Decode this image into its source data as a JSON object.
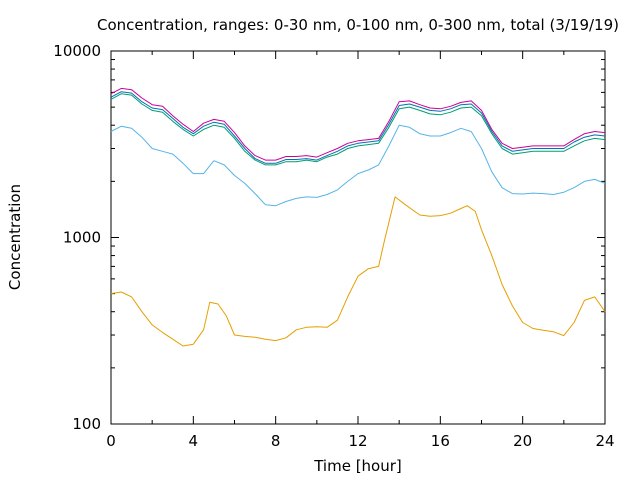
{
  "chart_data": {
    "type": "line",
    "title": "Concentration, ranges: 0-30 nm, 0-100 nm, 0-300 nm, total (3/19/19)",
    "xlabel": "Time [hour]",
    "ylabel": "Concentration",
    "xlim": [
      0,
      24
    ],
    "ylim": [
      100,
      10000
    ],
    "yscale": "log",
    "grid": false,
    "legend": "none",
    "x_ticks": [
      0,
      4,
      8,
      12,
      16,
      20,
      24
    ],
    "x_tick_labels": [
      "0",
      "4",
      "8",
      "12",
      "16",
      "20",
      "24"
    ],
    "y_ticks": [
      100,
      1000,
      10000
    ],
    "y_tick_labels": [
      "100",
      "1000",
      "10000"
    ],
    "series": [
      {
        "color": "#e69f00",
        "x": [
          0,
          0.5,
          1,
          1.5,
          2,
          2.5,
          3,
          3.5,
          4,
          4.5,
          4.8,
          5.2,
          5.6,
          6,
          6.5,
          7,
          7.5,
          8,
          8.5,
          9,
          9.5,
          10,
          10.5,
          11,
          11.5,
          12,
          12.5,
          13,
          13.3,
          13.8,
          14.3,
          15,
          15.5,
          16,
          16.5,
          17,
          17.3,
          17.7,
          18,
          18.5,
          19,
          19.5,
          20,
          20.5,
          21,
          21.5,
          22,
          22.5,
          23,
          23.5,
          24
        ],
        "y": [
          500,
          510,
          480,
          400,
          340,
          310,
          285,
          262,
          268,
          320,
          450,
          440,
          380,
          300,
          295,
          292,
          285,
          280,
          290,
          320,
          330,
          332,
          330,
          360,
          480,
          620,
          680,
          700,
          980,
          1650,
          1500,
          1320,
          1300,
          1310,
          1350,
          1430,
          1480,
          1380,
          1100,
          800,
          560,
          430,
          350,
          325,
          318,
          312,
          298,
          350,
          460,
          480,
          400
        ]
      },
      {
        "color": "#56b4e9",
        "x": [
          0,
          0.5,
          1,
          1.5,
          2,
          2.5,
          3,
          3.5,
          4,
          4.5,
          5,
          5.5,
          6,
          6.5,
          7,
          7.5,
          8,
          8.5,
          9,
          9.5,
          10,
          10.5,
          11,
          11.5,
          12,
          12.5,
          13,
          13.5,
          14,
          14.5,
          15,
          15.5,
          16,
          16.5,
          17,
          17.5,
          18,
          18.5,
          19,
          19.5,
          20,
          20.5,
          21,
          21.5,
          22,
          22.5,
          23,
          23.5,
          24
        ],
        "y": [
          3700,
          3950,
          3850,
          3450,
          3000,
          2900,
          2800,
          2500,
          2200,
          2200,
          2580,
          2450,
          2150,
          1950,
          1720,
          1500,
          1480,
          1560,
          1620,
          1650,
          1640,
          1700,
          1800,
          2000,
          2200,
          2300,
          2450,
          3100,
          4000,
          3900,
          3600,
          3500,
          3500,
          3650,
          3850,
          3700,
          3000,
          2250,
          1850,
          1720,
          1710,
          1730,
          1720,
          1700,
          1750,
          1850,
          2000,
          2050,
          1950
        ]
      },
      {
        "color": "#009e73",
        "x": [
          0,
          0.5,
          1,
          1.5,
          2,
          2.5,
          3,
          3.5,
          4,
          4.5,
          5,
          5.5,
          6,
          6.5,
          7,
          7.5,
          8,
          8.5,
          9,
          9.5,
          10,
          10.5,
          11,
          11.5,
          12,
          12.5,
          13,
          13.5,
          14,
          14.5,
          15,
          15.5,
          16,
          16.5,
          17,
          17.5,
          18,
          18.5,
          19,
          19.5,
          20,
          20.5,
          21,
          21.5,
          22,
          22.5,
          23,
          23.5,
          24
        ],
        "y": [
          5500,
          5900,
          5800,
          5200,
          4800,
          4700,
          4200,
          3800,
          3500,
          3800,
          4000,
          3900,
          3400,
          2900,
          2600,
          2450,
          2450,
          2550,
          2550,
          2600,
          2550,
          2700,
          2800,
          3000,
          3100,
          3150,
          3200,
          3900,
          4900,
          5000,
          4800,
          4600,
          4550,
          4700,
          4950,
          5000,
          4500,
          3600,
          3000,
          2800,
          2850,
          2900,
          2900,
          2900,
          2900,
          3100,
          3300,
          3400,
          3350
        ]
      },
      {
        "color": "#0072b2",
        "x": [
          0,
          0.5,
          1,
          1.5,
          2,
          2.5,
          3,
          3.5,
          4,
          4.5,
          5,
          5.5,
          6,
          6.5,
          7,
          7.5,
          8,
          8.5,
          9,
          9.5,
          10,
          10.5,
          11,
          11.5,
          12,
          12.5,
          13,
          13.5,
          14,
          14.5,
          15,
          15.5,
          16,
          16.5,
          17,
          17.5,
          18,
          18.5,
          19,
          19.5,
          20,
          20.5,
          21,
          21.5,
          22,
          22.5,
          23,
          23.5,
          24
        ],
        "y": [
          5650,
          6050,
          5950,
          5350,
          4950,
          4850,
          4350,
          3900,
          3600,
          3950,
          4150,
          4050,
          3500,
          3000,
          2650,
          2500,
          2500,
          2620,
          2620,
          2650,
          2600,
          2750,
          2900,
          3100,
          3200,
          3250,
          3300,
          4050,
          5100,
          5200,
          5000,
          4800,
          4750,
          4900,
          5150,
          5200,
          4650,
          3700,
          3100,
          2900,
          2950,
          3000,
          3000,
          3000,
          3000,
          3250,
          3450,
          3550,
          3500
        ]
      },
      {
        "color": "#cc0099",
        "x": [
          0,
          0.5,
          1,
          1.5,
          2,
          2.5,
          3,
          3.5,
          4,
          4.5,
          5,
          5.5,
          6,
          6.5,
          7,
          7.5,
          8,
          8.5,
          9,
          9.5,
          10,
          10.5,
          11,
          11.5,
          12,
          12.5,
          13,
          13.5,
          14,
          14.5,
          15,
          15.5,
          16,
          16.5,
          17,
          17.5,
          18,
          18.5,
          19,
          19.5,
          20,
          20.5,
          21,
          21.5,
          22,
          22.5,
          23,
          23.5,
          24
        ],
        "y": [
          5900,
          6300,
          6200,
          5600,
          5150,
          5050,
          4500,
          4050,
          3700,
          4100,
          4300,
          4200,
          3650,
          3100,
          2750,
          2600,
          2600,
          2720,
          2720,
          2750,
          2700,
          2850,
          3000,
          3200,
          3300,
          3350,
          3400,
          4200,
          5350,
          5400,
          5150,
          4950,
          4900,
          5050,
          5300,
          5400,
          4800,
          3800,
          3200,
          3000,
          3050,
          3100,
          3100,
          3100,
          3100,
          3350,
          3600,
          3700,
          3650
        ]
      }
    ]
  }
}
